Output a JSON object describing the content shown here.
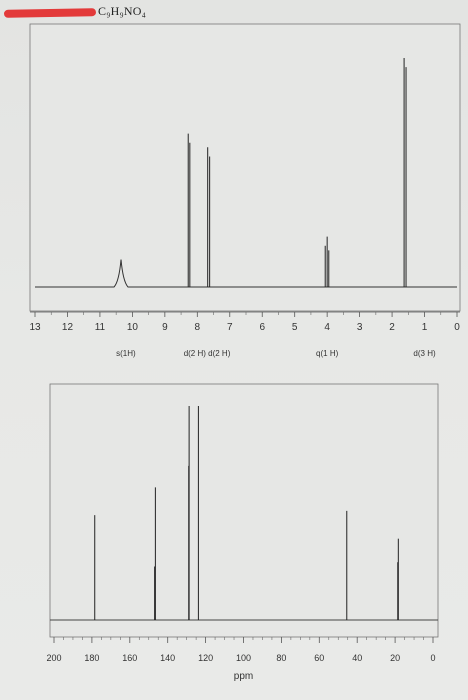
{
  "header": {
    "formula": "C₉H₉NO₄"
  },
  "chart_data": [
    {
      "type": "line",
      "xlim": [
        13,
        0
      ],
      "ticks": [
        "13",
        "12",
        "11",
        "10",
        "9",
        "8",
        "7",
        "6",
        "5",
        "4",
        "3",
        "2",
        "1",
        "0"
      ],
      "peaks": [
        {
          "ppm": 10.35,
          "height": 0.12
        },
        {
          "ppm": 8.28,
          "height": 0.67
        },
        {
          "ppm": 8.23,
          "height": 0.63
        },
        {
          "ppm": 7.68,
          "height": 0.61
        },
        {
          "ppm": 7.62,
          "height": 0.57
        },
        {
          "ppm": 4.06,
          "height": 0.18
        },
        {
          "ppm": 4.0,
          "height": 0.22
        },
        {
          "ppm": 3.95,
          "height": 0.16
        },
        {
          "ppm": 1.63,
          "height": 1.0
        },
        {
          "ppm": 1.57,
          "height": 0.96
        }
      ],
      "annotations": [
        {
          "text": "s(1H)",
          "ppm": 10.2
        },
        {
          "text": "d(2 H) d(2 H)",
          "ppm": 7.7
        },
        {
          "text": "q(1 H)",
          "ppm": 4.0
        },
        {
          "text": "d(3 H)",
          "ppm": 1.0
        }
      ]
    },
    {
      "type": "bar",
      "xlim": [
        200,
        0
      ],
      "xlabel": "ppm",
      "ticks": [
        "200",
        "180",
        "160",
        "140",
        "120",
        "100",
        "80",
        "60",
        "40",
        "20",
        "0"
      ],
      "peaks": [
        {
          "ppm": 178.5,
          "height": 0.49
        },
        {
          "ppm": 146.5,
          "height": 0.62
        },
        {
          "ppm": 146.9,
          "height": 0.25
        },
        {
          "ppm": 128.7,
          "height": 1.0
        },
        {
          "ppm": 128.9,
          "height": 0.72
        },
        {
          "ppm": 123.8,
          "height": 1.0
        },
        {
          "ppm": 45.5,
          "height": 0.51
        },
        {
          "ppm": 18.3,
          "height": 0.38
        },
        {
          "ppm": 18.6,
          "height": 0.27
        }
      ]
    }
  ]
}
